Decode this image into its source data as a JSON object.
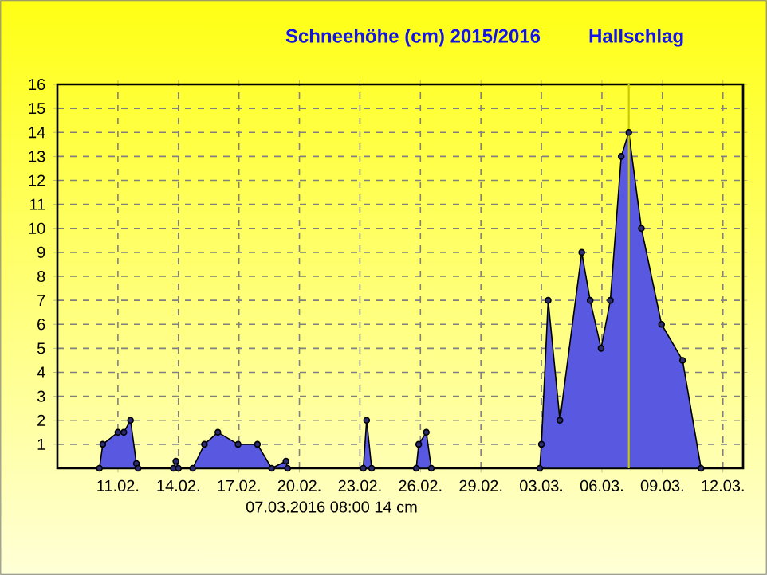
{
  "chart_data": {
    "type": "area",
    "title": "Schneehöhe (cm)  2015/2016",
    "subtitle": "Hallschlag",
    "x": [
      "2016-02-10T02:00",
      "2016-02-10T06:00",
      "2016-02-11T00:00",
      "2016-02-11T07:00",
      "2016-02-11T15:00",
      "2016-02-11T22:00",
      "2016-02-12T00:00",
      "2016-02-13T18:00",
      "2016-02-13T21:00",
      "2016-02-14T00:00",
      "2016-02-14T17:00",
      "2016-02-15T07:00",
      "2016-02-15T23:00",
      "2016-02-16T23:00",
      "2016-02-17T22:00",
      "2016-02-18T15:00",
      "2016-02-19T08:00",
      "2016-02-19T10:00",
      "2016-02-23T04:00",
      "2016-02-23T08:00",
      "2016-02-23T14:00",
      "2016-02-25T19:00",
      "2016-02-25T22:00",
      "2016-02-26T07:00",
      "2016-02-26T13:00",
      "2016-03-02T22:00",
      "2016-03-03T00:00",
      "2016-03-03T08:00",
      "2016-03-03T22:00",
      "2016-03-05T00:00",
      "2016-03-05T10:00",
      "2016-03-05T23:00",
      "2016-03-06T10:00",
      "2016-03-06T23:00",
      "2016-03-07T08:00",
      "2016-03-07T23:00",
      "2016-03-08T23:00",
      "2016-03-10T00:00",
      "2016-03-10T22:00"
    ],
    "values": [
      0,
      1,
      1.5,
      1.5,
      2,
      0.2,
      0,
      0,
      0.3,
      0,
      0,
      1,
      1.5,
      1,
      1,
      0,
      0.3,
      0,
      0,
      2,
      0,
      0,
      1,
      1.5,
      0,
      0,
      1,
      7,
      2,
      9,
      7,
      5,
      7,
      13,
      14,
      10,
      6,
      4.5,
      0
    ],
    "color": "#5858e0",
    "marker": "circle",
    "grid": true,
    "xlim": [
      "2016-02-08",
      "2016-03-13"
    ],
    "xticks": [
      {
        "value": "2016-02-11",
        "label": "11.02."
      },
      {
        "value": "2016-02-14",
        "label": "14.02."
      },
      {
        "value": "2016-02-17",
        "label": "17.02."
      },
      {
        "value": "2016-02-20",
        "label": "20.02."
      },
      {
        "value": "2016-02-23",
        "label": "23.02."
      },
      {
        "value": "2016-02-26",
        "label": "26.02."
      },
      {
        "value": "2016-02-29",
        "label": "29.02."
      },
      {
        "value": "2016-03-03",
        "label": "03.03."
      },
      {
        "value": "2016-03-06",
        "label": "06.03."
      },
      {
        "value": "2016-03-09",
        "label": "09.03."
      },
      {
        "value": "2016-03-12",
        "label": "12.03."
      }
    ],
    "ylim": [
      0,
      16
    ],
    "yticks": [
      1,
      2,
      3,
      4,
      5,
      6,
      7,
      8,
      9,
      10,
      11,
      12,
      13,
      14,
      15,
      16
    ],
    "annotations": [
      "07.03.2016 08:00  14 cm"
    ],
    "ref_lines": [
      {
        "axis": "x",
        "value": "2016-03-07T08:00",
        "color": "#c8c800"
      }
    ]
  }
}
